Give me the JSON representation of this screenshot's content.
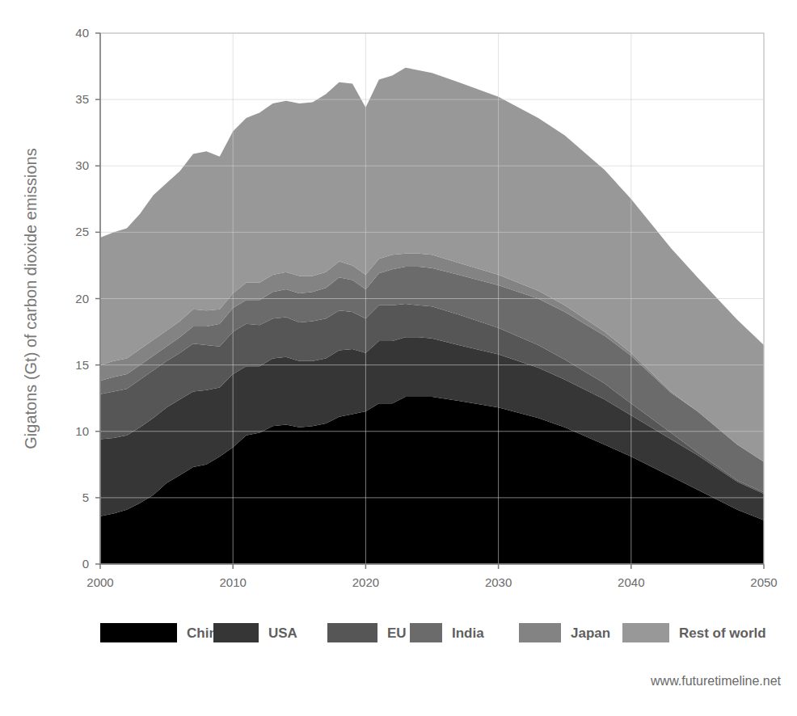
{
  "chart_data": {
    "type": "area",
    "stacked": true,
    "grid": true,
    "legend": "bottom",
    "y_label": "Gigatons (Gt) of carbon dioxide emissions",
    "source": "www.futuretimeline.net",
    "xlim": [
      2000,
      2050
    ],
    "ylim": [
      0,
      40
    ],
    "xticks": [
      2000,
      2010,
      2020,
      2030,
      2040,
      2050
    ],
    "yticks": [
      0,
      5,
      10,
      15,
      20,
      25,
      30,
      35,
      40
    ],
    "x": [
      2000,
      2001,
      2002,
      2003,
      2004,
      2005,
      2006,
      2007,
      2008,
      2009,
      2010,
      2011,
      2012,
      2013,
      2014,
      2015,
      2016,
      2017,
      2018,
      2019,
      2020,
      2021,
      2022,
      2023,
      2024,
      2025,
      2027,
      2030,
      2033,
      2035,
      2038,
      2040,
      2043,
      2045,
      2048,
      2050
    ],
    "series": [
      {
        "name": "China",
        "color": "#000000",
        "values": [
          3.6,
          3.8,
          4.1,
          4.6,
          5.2,
          6.1,
          6.7,
          7.3,
          7.5,
          8.1,
          8.8,
          9.7,
          9.9,
          10.4,
          10.5,
          10.3,
          10.4,
          10.6,
          11.1,
          11.3,
          11.5,
          12.1,
          12.1,
          12.6,
          12.6,
          12.6,
          12.3,
          11.8,
          11.0,
          10.3,
          9.0,
          8.1,
          6.6,
          5.6,
          4.1,
          3.3
        ]
      },
      {
        "name": "USA",
        "color": "#363636",
        "values": [
          5.8,
          5.7,
          5.6,
          5.7,
          5.8,
          5.7,
          5.7,
          5.7,
          5.6,
          5.2,
          5.5,
          5.2,
          5.0,
          5.1,
          5.1,
          5.0,
          4.9,
          4.9,
          5.0,
          4.9,
          4.4,
          4.7,
          4.7,
          4.5,
          4.5,
          4.4,
          4.2,
          4.0,
          3.8,
          3.6,
          3.4,
          3.1,
          2.8,
          2.6,
          2.1,
          2.0
        ]
      },
      {
        "name": "EU",
        "color": "#565656",
        "values": [
          3.4,
          3.5,
          3.5,
          3.6,
          3.6,
          3.5,
          3.5,
          3.6,
          3.4,
          3.1,
          3.2,
          3.2,
          3.1,
          3.0,
          3.0,
          2.9,
          3.0,
          3.0,
          3.0,
          2.8,
          2.6,
          2.7,
          2.7,
          2.5,
          2.4,
          2.4,
          2.3,
          2.0,
          1.7,
          1.5,
          1.2,
          0.9,
          0.5,
          0.2,
          0.1,
          0.1
        ]
      },
      {
        "name": "India",
        "color": "#6b6b6b",
        "values": [
          1.0,
          1.1,
          1.1,
          1.1,
          1.1,
          1.1,
          1.2,
          1.3,
          1.4,
          1.7,
          1.8,
          1.8,
          1.9,
          2.0,
          2.1,
          2.2,
          2.2,
          2.3,
          2.5,
          2.4,
          2.2,
          2.4,
          2.7,
          2.8,
          2.9,
          2.9,
          3.0,
          3.2,
          3.5,
          3.6,
          3.6,
          3.6,
          3.0,
          3.1,
          2.7,
          2.3
        ]
      },
      {
        "name": "Japan",
        "color": "#838383",
        "values": [
          1.2,
          1.2,
          1.2,
          1.2,
          1.2,
          1.2,
          1.2,
          1.3,
          1.2,
          1.1,
          1.1,
          1.3,
          1.3,
          1.3,
          1.3,
          1.3,
          1.2,
          1.2,
          1.2,
          1.1,
          1.1,
          1.1,
          1.1,
          1.0,
          1.0,
          1.0,
          0.9,
          0.8,
          0.6,
          0.5,
          0.3,
          0.2,
          0.1,
          0,
          0,
          0
        ]
      },
      {
        "name": "Rest of world",
        "color": "#989899",
        "values": [
          9.6,
          9.7,
          9.8,
          10.2,
          10.9,
          11.1,
          11.3,
          11.7,
          12.0,
          11.5,
          12.2,
          12.4,
          12.8,
          12.9,
          12.9,
          13.0,
          13.1,
          13.4,
          13.5,
          13.7,
          12.6,
          13.5,
          13.5,
          14.0,
          13.8,
          13.7,
          13.6,
          13.4,
          13.0,
          12.8,
          12.2,
          11.6,
          10.8,
          10.1,
          9.4,
          8.8
        ]
      }
    ]
  }
}
